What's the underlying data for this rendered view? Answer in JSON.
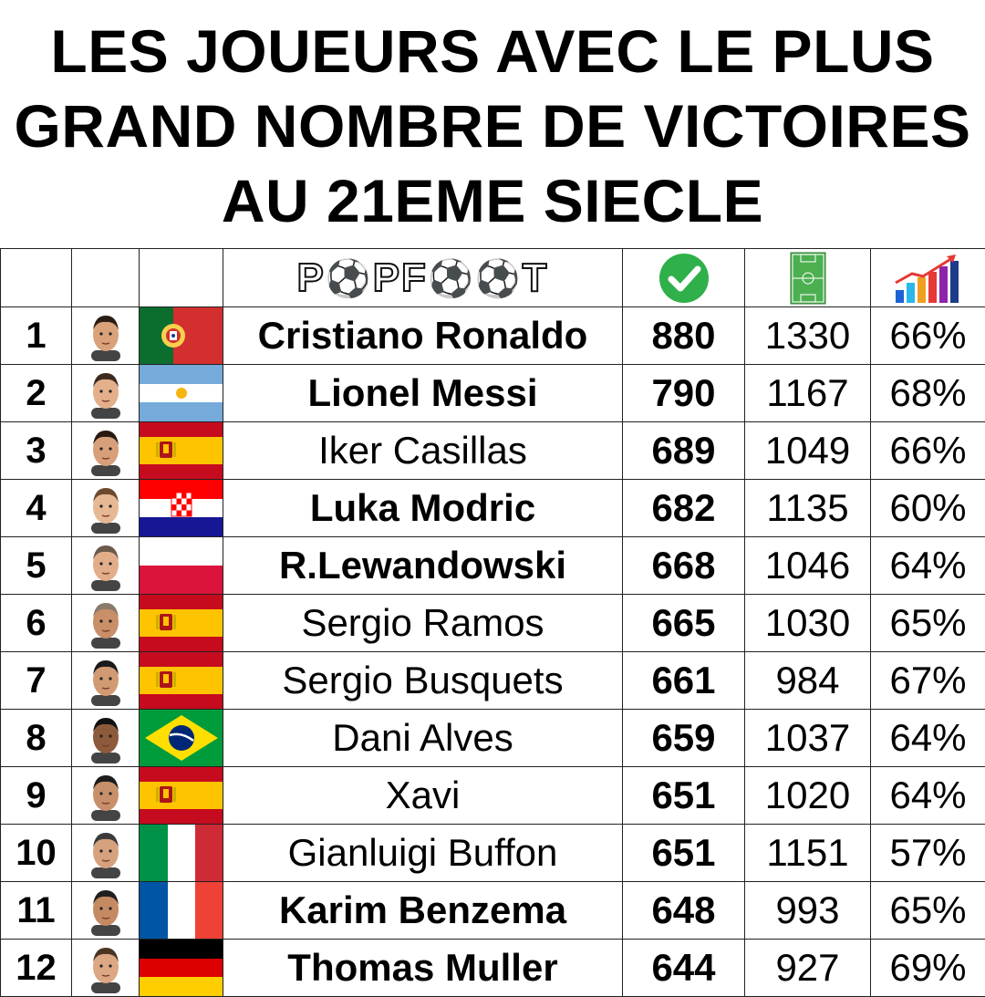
{
  "title": {
    "line1": "LES JOUEURS AVEC LE PLUS",
    "line2": "GRAND NOMBRE DE VICTOIRES",
    "line3": "AU 21EME SIECLE"
  },
  "header": {
    "logo_left": "P",
    "logo_mid": "PF",
    "logo_right": "T",
    "icons": {
      "wins": "checkmark-icon",
      "matches": "football-pitch-icon",
      "percentage": "growth-chart-icon"
    },
    "colors": {
      "check": "#2fb04a",
      "pitch": "#4caf50"
    }
  },
  "rows": [
    {
      "rank": "1",
      "name": "Cristiano Ronaldo",
      "bold": true,
      "wins": "880",
      "matches": "1330",
      "pct": "66%",
      "flag": "portugal"
    },
    {
      "rank": "2",
      "name": "Lionel Messi",
      "bold": true,
      "wins": "790",
      "matches": "1167",
      "pct": "68%",
      "flag": "argentina"
    },
    {
      "rank": "3",
      "name": "Iker Casillas",
      "bold": false,
      "wins": "689",
      "matches": "1049",
      "pct": "66%",
      "flag": "spain"
    },
    {
      "rank": "4",
      "name": "Luka Modric",
      "bold": true,
      "wins": "682",
      "matches": "1135",
      "pct": "60%",
      "flag": "croatia"
    },
    {
      "rank": "5",
      "name": "R.Lewandowski",
      "bold": true,
      "wins": "668",
      "matches": "1046",
      "pct": "64%",
      "flag": "poland"
    },
    {
      "rank": "6",
      "name": "Sergio Ramos",
      "bold": false,
      "wins": "665",
      "matches": "1030",
      "pct": "65%",
      "flag": "spain"
    },
    {
      "rank": "7",
      "name": "Sergio Busquets",
      "bold": false,
      "wins": "661",
      "matches": "984",
      "pct": "67%",
      "flag": "spain"
    },
    {
      "rank": "8",
      "name": "Dani Alves",
      "bold": false,
      "wins": "659",
      "matches": "1037",
      "pct": "64%",
      "flag": "brazil"
    },
    {
      "rank": "9",
      "name": "Xavi",
      "bold": false,
      "wins": "651",
      "matches": "1020",
      "pct": "64%",
      "flag": "spain"
    },
    {
      "rank": "10",
      "name": "Gianluigi Buffon",
      "bold": false,
      "wins": "651",
      "matches": "1151",
      "pct": "57%",
      "flag": "italy"
    },
    {
      "rank": "11",
      "name": "Karim Benzema",
      "bold": true,
      "wins": "648",
      "matches": "993",
      "pct": "65%",
      "flag": "france"
    },
    {
      "rank": "12",
      "name": "Thomas Muller",
      "bold": true,
      "wins": "644",
      "matches": "927",
      "pct": "69%",
      "flag": "germany"
    }
  ]
}
